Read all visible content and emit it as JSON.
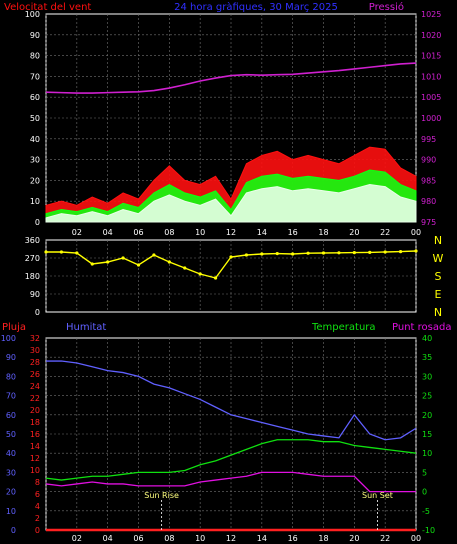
{
  "colors": {
    "background": "#000000",
    "grid": "#707070",
    "wind": "#ff1010",
    "wind_avg": "#10ff10",
    "wind_min": "#e8ffe8",
    "pressure": "#d020d0",
    "direction": "#ffff00",
    "rain": "#ff2020",
    "humidity": "#6060ff",
    "temperature": "#10e010",
    "dewpoint": "#e010e0",
    "axis_text": "#ffffff"
  },
  "panel1": {
    "left_title": "Velocitat del vent",
    "center_title": "24 hora gràfiques, 30 Març 2025",
    "right_title": "Pressió",
    "left_ticks": [
      "100",
      "90",
      "80",
      "70",
      "60",
      "50",
      "40",
      "30",
      "20",
      "10",
      "0"
    ],
    "right_ticks": [
      "1025",
      "1020",
      "1015",
      "1010",
      "1005",
      "1000",
      "995",
      "990",
      "985",
      "980",
      "975"
    ]
  },
  "panel2": {
    "left_ticks": [
      "360",
      "270",
      "180",
      "90",
      "0"
    ],
    "compass": [
      "N",
      "W",
      "S",
      "E",
      "N"
    ]
  },
  "panel3": {
    "rain_title": "Pluja",
    "humidity_title": "Humitat",
    "temperature_title": "Temperatura",
    "dewpoint_title": "Punt rosada",
    "humidity_ticks": [
      "100",
      "90",
      "80",
      "70",
      "60",
      "50",
      "40",
      "30",
      "20",
      "10",
      "0"
    ],
    "rain_ticks": [
      "32",
      "30",
      "28",
      "26",
      "24",
      "22",
      "20",
      "18",
      "16",
      "14",
      "12",
      "10",
      "8",
      "6",
      "4",
      "2",
      "0"
    ],
    "temp_ticks": [
      "40",
      "35",
      "30",
      "25",
      "20",
      "15",
      "10",
      "5",
      "0",
      "-5",
      "-10"
    ],
    "sunrise_label": "Sun Rise",
    "sunset_label": "Sun Set"
  },
  "x_ticks": [
    "02",
    "04",
    "06",
    "08",
    "10",
    "12",
    "14",
    "16",
    "18",
    "20",
    "22",
    "00"
  ],
  "chart_data": [
    {
      "type": "line",
      "title": "24 hora gràfiques, 30 Març 2025",
      "ylabel": "Velocitat del vent",
      "ylabel_right": "Pressió",
      "xlabel": "",
      "x": [
        0,
        1,
        2,
        3,
        4,
        5,
        6,
        7,
        8,
        9,
        10,
        11,
        12,
        13,
        14,
        15,
        16,
        17,
        18,
        19,
        20,
        21,
        22,
        23,
        24
      ],
      "ylim": [
        0,
        100
      ],
      "ylim_right": [
        975,
        1025
      ],
      "series": [
        {
          "name": "",
          "axis": "left",
          "color_key": "wind",
          "values": [
            8,
            10,
            8,
            12,
            9,
            14,
            11,
            20,
            27,
            20,
            18,
            22,
            11,
            28,
            32,
            34,
            30,
            32,
            30,
            28,
            32,
            36,
            35,
            26,
            22
          ]
        },
        {
          "name": "",
          "axis": "left",
          "color_key": "wind_avg",
          "values": [
            4,
            6,
            5,
            7,
            5,
            9,
            7,
            14,
            18,
            14,
            12,
            15,
            6,
            19,
            22,
            23,
            21,
            22,
            21,
            20,
            22,
            25,
            24,
            18,
            15
          ]
        },
        {
          "name": "",
          "axis": "left",
          "color_key": "wind_min",
          "values": [
            2,
            4,
            3,
            5,
            3,
            6,
            4,
            10,
            13,
            10,
            8,
            11,
            3,
            14,
            16,
            17,
            15,
            16,
            15,
            14,
            16,
            18,
            17,
            12,
            10
          ]
        },
        {
          "name": "Pressió",
          "axis": "right",
          "color_key": "pressure",
          "values": [
            1006.2,
            1006.1,
            1006.0,
            1006.0,
            1006.1,
            1006.2,
            1006.3,
            1006.6,
            1007.2,
            1008.0,
            1008.9,
            1009.6,
            1010.2,
            1010.4,
            1010.3,
            1010.4,
            1010.5,
            1010.8,
            1011.1,
            1011.4,
            1011.8,
            1012.2,
            1012.6,
            1013.0,
            1013.2
          ]
        }
      ]
    },
    {
      "type": "scatter",
      "title": "",
      "ylabel": "",
      "xlabel": "",
      "ylim": [
        0,
        360
      ],
      "x": [
        0,
        1,
        2,
        3,
        4,
        5,
        6,
        7,
        8,
        9,
        10,
        11,
        12,
        13,
        14,
        15,
        16,
        17,
        18,
        19,
        20,
        21,
        22,
        23,
        24
      ],
      "series": [
        {
          "name": "",
          "color_key": "direction",
          "values": [
            300,
            300,
            295,
            240,
            250,
            270,
            235,
            285,
            250,
            220,
            190,
            170,
            275,
            285,
            290,
            292,
            290,
            294,
            295,
            296,
            297,
            298,
            300,
            302,
            305
          ]
        }
      ]
    },
    {
      "type": "line",
      "title": "",
      "xlabel": "",
      "x": [
        0,
        1,
        2,
        3,
        4,
        5,
        6,
        7,
        8,
        9,
        10,
        11,
        12,
        13,
        14,
        15,
        16,
        17,
        18,
        19,
        20,
        21,
        22,
        23,
        24
      ],
      "series": [
        {
          "name": "Pluja",
          "axis": "rain",
          "color_key": "rain",
          "values": [
            0,
            0,
            0,
            0,
            0,
            0,
            0,
            0,
            0,
            0,
            0,
            0,
            0,
            0,
            0,
            0,
            0,
            0,
            0,
            0,
            0,
            0,
            0,
            0,
            0
          ]
        },
        {
          "name": "Humitat",
          "axis": "humidity",
          "color_key": "humidity",
          "values": [
            88,
            88,
            87,
            85,
            83,
            82,
            80,
            76,
            74,
            71,
            68,
            64,
            60,
            58,
            56,
            54,
            52,
            50,
            49,
            48,
            60,
            50,
            47,
            48,
            53
          ]
        },
        {
          "name": "Temperatura",
          "axis": "temperature",
          "color_key": "temperature",
          "values": [
            3.5,
            3.0,
            3.5,
            4.0,
            4.0,
            4.5,
            5.0,
            5.0,
            5.0,
            5.5,
            7.0,
            8.0,
            9.5,
            11.0,
            12.5,
            13.5,
            13.5,
            13.5,
            13.0,
            13.0,
            12.0,
            11.5,
            11.0,
            10.5,
            10.0
          ]
        },
        {
          "name": "Punt rosada",
          "axis": "temperature",
          "color_key": "dewpoint",
          "values": [
            2.0,
            1.5,
            2.0,
            2.5,
            2.0,
            2.0,
            1.5,
            1.5,
            1.5,
            1.5,
            2.5,
            3.0,
            3.5,
            4.0,
            5.0,
            5.0,
            5.0,
            4.5,
            4.0,
            4.0,
            4.0,
            0.0,
            0.0,
            0.0,
            0.0
          ]
        }
      ],
      "ylim_humidity": [
        0,
        100
      ],
      "ylim_rain": [
        0,
        32
      ],
      "ylim_temperature": [
        -10,
        40
      ],
      "annotations": [
        "Sun Rise",
        "Sun Set"
      ],
      "sunrise_x": 7.5,
      "sunset_x": 21.5
    }
  ]
}
